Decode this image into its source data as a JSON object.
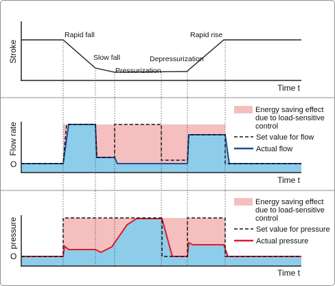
{
  "colors": {
    "saving_fill": "#f5bfbf",
    "actual_fill": "#8ecdea",
    "flow_line": "#1a4f9c",
    "pressure_line": "#e0182d",
    "axis": "#222222"
  },
  "stroke_panel": {
    "ylabel": "Stroke",
    "xlabel": "Time t",
    "annotations": {
      "rapid_fall": "Rapid fall",
      "slow_fall": "Slow fall",
      "pressurization": "Pressurization",
      "depressurization": "Depressurization",
      "rapid_rise": "Rapid rise"
    }
  },
  "flow_panel": {
    "ylabel": "Flow rate",
    "zero_label": "O",
    "xlabel": "Time t",
    "legend": {
      "saving_line1": "Energy saving effect",
      "saving_line2": "due to load-sensitive",
      "saving_line3": "control",
      "set_value": "Set value for flow",
      "actual": "Actual flow"
    }
  },
  "pressure_panel": {
    "ylabel": "pressure",
    "zero_label": "O",
    "xlabel": "Time t",
    "legend": {
      "saving_line1": "Energy saving effect",
      "saving_line2": "due to load-sensitive",
      "saving_line3": "control",
      "set_value": "Set value for pressure",
      "actual": "Actual pressure"
    }
  }
}
